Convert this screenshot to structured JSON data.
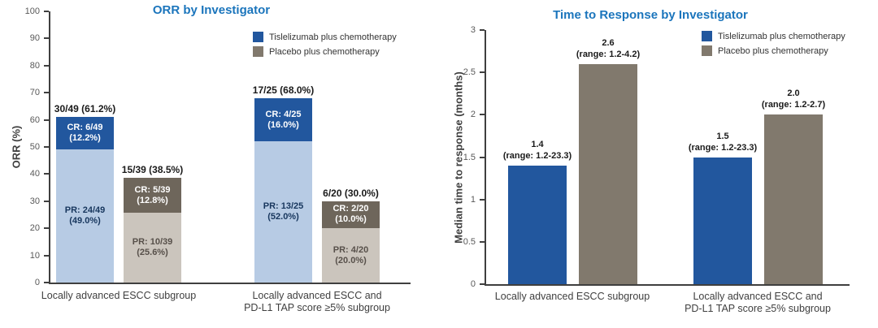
{
  "figure": {
    "background": "#FFFFFF"
  },
  "colors": {
    "title_blue": "#1B75BC",
    "axis": "#3F3F3F",
    "tick_label": "#595959",
    "category_label": "#3F3F3F",
    "tislelizumab_blue": "#22579E",
    "tislelizumab_light_blue": "#B7CBE4",
    "placebo_taupe": "#81796D",
    "placebo_dark_taupe": "#6E665B",
    "placebo_light_taupe": "#CBC5BD",
    "annotation_black": "#1A1A1A",
    "pr_text_on_blue": "#17365D",
    "pr_text_on_taupe": "#57504A",
    "cr_text_white": "#FFFFFF"
  },
  "legend": {
    "items": [
      {
        "label": "Tislelizumab plus chemotherapy",
        "color": "#22579E"
      },
      {
        "label": "Placebo plus chemotherapy",
        "color": "#81796D"
      }
    ]
  },
  "chart_data": [
    {
      "type": "bar",
      "stacked": true,
      "title": "ORR by Investigator",
      "ylabel": "ORR (%)",
      "xlabel": "",
      "ylim": [
        0,
        100
      ],
      "yticks": [
        0,
        10,
        20,
        30,
        40,
        50,
        60,
        70,
        80,
        90,
        100
      ],
      "grid": false,
      "legend_position": "top-right",
      "categories": [
        "Locally advanced ESCC subgroup",
        "Locally advanced ESCC and\nPD-L1 TAP score ≥5% subgroup"
      ],
      "series_names": [
        "Tislelizumab plus chemotherapy",
        "Placebo plus chemotherapy"
      ],
      "bars": [
        {
          "category": "Locally advanced ESCC subgroup",
          "series": "Tislelizumab plus chemotherapy",
          "total_value": 61.2,
          "total_label": "30/49 (61.2%)",
          "segments": [
            {
              "name": "PR",
              "value": 49.0,
              "label_lines": [
                "PR: 24/49",
                "(49.0%)"
              ],
              "fill": "#B7CBE4",
              "text": "#17365D"
            },
            {
              "name": "CR",
              "value": 12.2,
              "label_lines": [
                "CR: 6/49",
                "(12.2%)"
              ],
              "fill": "#22579E",
              "text": "#FFFFFF"
            }
          ]
        },
        {
          "category": "Locally advanced ESCC subgroup",
          "series": "Placebo plus chemotherapy",
          "total_value": 38.5,
          "total_label": "15/39 (38.5%)",
          "segments": [
            {
              "name": "PR",
              "value": 25.6,
              "label_lines": [
                "PR: 10/39",
                "(25.6%)"
              ],
              "fill": "#CBC5BD",
              "text": "#57504A"
            },
            {
              "name": "CR",
              "value": 12.8,
              "label_lines": [
                "CR: 5/39",
                "(12.8%)"
              ],
              "fill": "#6E665B",
              "text": "#FFFFFF"
            }
          ]
        },
        {
          "category": "Locally advanced ESCC and PD-L1 TAP score ≥5% subgroup",
          "series": "Tislelizumab plus chemotherapy",
          "total_value": 68.0,
          "total_label": "17/25 (68.0%)",
          "segments": [
            {
              "name": "PR",
              "value": 52.0,
              "label_lines": [
                "PR: 13/25",
                "(52.0%)"
              ],
              "fill": "#B7CBE4",
              "text": "#17365D"
            },
            {
              "name": "CR",
              "value": 16.0,
              "label_lines": [
                "CR: 4/25",
                "(16.0%)"
              ],
              "fill": "#22579E",
              "text": "#FFFFFF"
            }
          ]
        },
        {
          "category": "Locally advanced ESCC and PD-L1 TAP score ≥5% subgroup",
          "series": "Placebo plus chemotherapy",
          "total_value": 30.0,
          "total_label": "6/20 (30.0%)",
          "segments": [
            {
              "name": "PR",
              "value": 20.0,
              "label_lines": [
                "PR: 4/20",
                "(20.0%)"
              ],
              "fill": "#CBC5BD",
              "text": "#57504A"
            },
            {
              "name": "CR",
              "value": 10.0,
              "label_lines": [
                "CR: 2/20",
                "(10.0%)"
              ],
              "fill": "#6E665B",
              "text": "#FFFFFF"
            }
          ]
        }
      ]
    },
    {
      "type": "bar",
      "stacked": false,
      "title": "Time to Response by Investigator",
      "ylabel": "Median time to response (months)",
      "xlabel": "",
      "ylim": [
        0,
        3
      ],
      "yticks": [
        0,
        0.5,
        1,
        1.5,
        2,
        2.5,
        3
      ],
      "grid": false,
      "legend_position": "top-right",
      "categories": [
        "Locally advanced ESCC subgroup",
        "Locally advanced ESCC and\nPD-L1 TAP score ≥5% subgroup"
      ],
      "series_names": [
        "Tislelizumab plus chemotherapy",
        "Placebo plus chemotherapy"
      ],
      "bars": [
        {
          "category": "Locally advanced ESCC subgroup",
          "series": "Tislelizumab plus chemotherapy",
          "value": 1.4,
          "value_label": "1.4",
          "range_label": "(range: 1.2-23.3)",
          "fill": "#22579E"
        },
        {
          "category": "Locally advanced ESCC subgroup",
          "series": "Placebo plus chemotherapy",
          "value": 2.6,
          "value_label": "2.6",
          "range_label": "(range: 1.2-4.2)",
          "fill": "#81796D"
        },
        {
          "category": "Locally advanced ESCC and PD-L1 TAP score ≥5% subgroup",
          "series": "Tislelizumab plus chemotherapy",
          "value": 1.5,
          "value_label": "1.5",
          "range_label": "(range: 1.2-23.3)",
          "fill": "#22579E"
        },
        {
          "category": "Locally advanced ESCC and PD-L1 TAP score ≥5% subgroup",
          "series": "Placebo plus chemotherapy",
          "value": 2.0,
          "value_label": "2.0",
          "range_label": "(range: 1.2-2.7)",
          "fill": "#81796D"
        }
      ]
    }
  ]
}
